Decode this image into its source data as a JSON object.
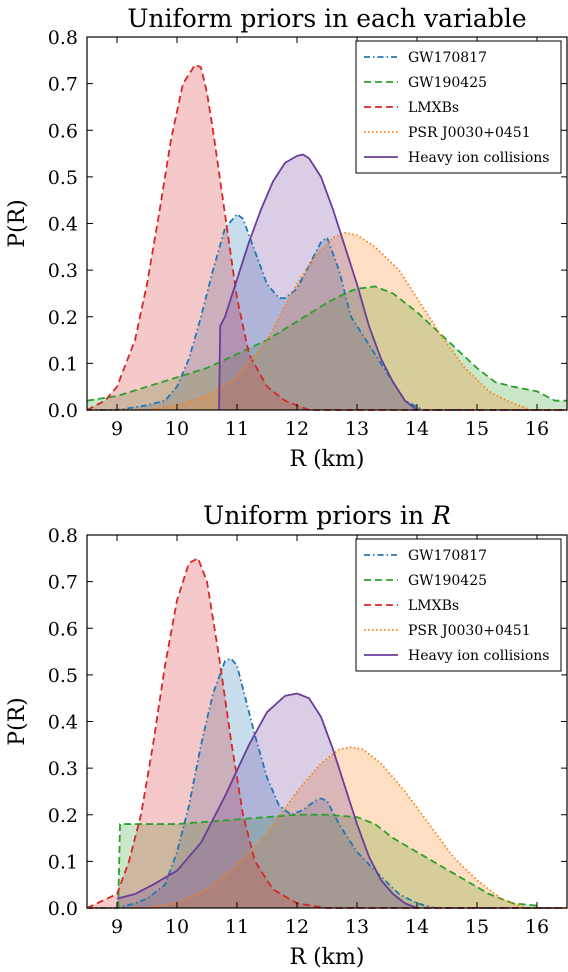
{
  "chart_data": [
    {
      "type": "area",
      "title": "Uniform priors in each variable",
      "xlabel": "R (km)",
      "ylabel": "P(R)",
      "xlim": [
        8.5,
        16.5
      ],
      "ylim": [
        0,
        0.8
      ],
      "xticks": [
        "9",
        "10",
        "11",
        "12",
        "13",
        "14",
        "15",
        "16"
      ],
      "yticks": [
        "0.0",
        "0.1",
        "0.2",
        "0.3",
        "0.4",
        "0.5",
        "0.6",
        "0.7",
        "0.8"
      ],
      "legend": "top-right",
      "series": [
        {
          "name": "GW170817",
          "color": "#1f77b4",
          "style": "dashdot",
          "x": [
            8.5,
            9.0,
            9.5,
            9.8,
            10.0,
            10.2,
            10.4,
            10.6,
            10.8,
            11.0,
            11.1,
            11.3,
            11.5,
            11.7,
            11.8,
            12.0,
            12.2,
            12.4,
            12.5,
            12.7,
            12.9,
            13.2,
            13.5,
            13.8,
            14.1,
            14.5,
            16.5
          ],
          "y": [
            0.0,
            0.0,
            0.01,
            0.02,
            0.05,
            0.11,
            0.2,
            0.3,
            0.39,
            0.42,
            0.41,
            0.34,
            0.27,
            0.24,
            0.24,
            0.26,
            0.31,
            0.36,
            0.37,
            0.3,
            0.2,
            0.14,
            0.08,
            0.02,
            0.0,
            0.0,
            0.0
          ]
        },
        {
          "name": "GW190425",
          "color": "#2ca02c",
          "style": "dashed",
          "x": [
            8.5,
            9.0,
            9.5,
            10.0,
            10.5,
            11.0,
            11.5,
            12.0,
            12.5,
            12.8,
            13.0,
            13.3,
            13.6,
            14.0,
            14.5,
            15.0,
            15.3,
            15.6,
            16.0,
            16.3,
            16.5
          ],
          "y": [
            0.02,
            0.03,
            0.05,
            0.07,
            0.09,
            0.12,
            0.15,
            0.19,
            0.23,
            0.25,
            0.26,
            0.265,
            0.25,
            0.21,
            0.15,
            0.09,
            0.06,
            0.05,
            0.04,
            0.02,
            0.02
          ]
        },
        {
          "name": "LMXBs",
          "color": "#d62728",
          "style": "dashed",
          "x": [
            8.5,
            8.8,
            9.0,
            9.3,
            9.5,
            9.7,
            9.9,
            10.1,
            10.3,
            10.4,
            10.5,
            10.6,
            10.8,
            11.0,
            11.2,
            11.5,
            11.8,
            12.2,
            12.5,
            16.5
          ],
          "y": [
            0.0,
            0.02,
            0.05,
            0.15,
            0.27,
            0.42,
            0.58,
            0.7,
            0.74,
            0.735,
            0.68,
            0.6,
            0.42,
            0.24,
            0.12,
            0.05,
            0.02,
            0.0,
            0.0,
            0.0
          ]
        },
        {
          "name": "PSR J0030+0451",
          "color": "#ff7f0e",
          "style": "dotted",
          "x": [
            8.5,
            9.0,
            9.5,
            10.0,
            10.5,
            11.0,
            11.5,
            12.0,
            12.3,
            12.6,
            12.8,
            13.0,
            13.3,
            13.7,
            14.0,
            14.4,
            14.8,
            15.2,
            15.5,
            15.9,
            16.5
          ],
          "y": [
            0.0,
            0.0,
            0.0,
            0.01,
            0.03,
            0.07,
            0.15,
            0.27,
            0.33,
            0.37,
            0.38,
            0.375,
            0.35,
            0.3,
            0.24,
            0.16,
            0.09,
            0.04,
            0.02,
            0.0,
            0.0
          ]
        },
        {
          "name": "Heavy ion collisions",
          "color": "#6a3d9a",
          "style": "solid",
          "x": [
            10.7,
            10.72,
            10.8,
            11.0,
            11.2,
            11.4,
            11.6,
            11.8,
            12.0,
            12.1,
            12.2,
            12.4,
            12.6,
            12.8,
            13.0,
            13.2,
            13.4,
            13.6,
            13.8,
            14.0
          ],
          "y": [
            0.0,
            0.18,
            0.2,
            0.28,
            0.36,
            0.43,
            0.49,
            0.53,
            0.545,
            0.548,
            0.54,
            0.5,
            0.43,
            0.35,
            0.27,
            0.18,
            0.11,
            0.06,
            0.02,
            0.0
          ]
        }
      ]
    },
    {
      "type": "area",
      "title": "Uniform priors in ",
      "title_var": "R",
      "xlabel": "R (km)",
      "ylabel": "P(R)",
      "xlim": [
        8.5,
        16.5
      ],
      "ylim": [
        0,
        0.8
      ],
      "xticks": [
        "9",
        "10",
        "11",
        "12",
        "13",
        "14",
        "15",
        "16"
      ],
      "yticks": [
        "0.0",
        "0.1",
        "0.2",
        "0.3",
        "0.4",
        "0.5",
        "0.6",
        "0.7",
        "0.8"
      ],
      "legend": "top-right",
      "series": [
        {
          "name": "GW170817",
          "color": "#1f77b4",
          "style": "dashdot",
          "x": [
            8.5,
            9.0,
            9.3,
            9.5,
            9.8,
            10.0,
            10.2,
            10.4,
            10.6,
            10.8,
            10.9,
            11.0,
            11.1,
            11.3,
            11.5,
            11.7,
            11.9,
            12.1,
            12.3,
            12.4,
            12.5,
            12.7,
            13.0,
            13.3,
            13.7,
            14.0,
            14.3,
            16.5
          ],
          "y": [
            0.0,
            0.0,
            0.01,
            0.02,
            0.05,
            0.12,
            0.22,
            0.35,
            0.46,
            0.53,
            0.535,
            0.52,
            0.47,
            0.37,
            0.28,
            0.22,
            0.2,
            0.21,
            0.23,
            0.235,
            0.23,
            0.18,
            0.12,
            0.08,
            0.03,
            0.01,
            0.0,
            0.0
          ]
        },
        {
          "name": "GW190425",
          "color": "#2ca02c",
          "style": "dashed",
          "x": [
            9.02,
            9.05,
            9.5,
            10.0,
            11.0,
            12.0,
            12.5,
            13.0,
            13.3,
            13.6,
            14.0,
            14.4,
            14.8,
            15.2,
            15.6,
            16.0,
            16.02
          ],
          "y": [
            0.0,
            0.18,
            0.18,
            0.18,
            0.19,
            0.2,
            0.2,
            0.195,
            0.18,
            0.15,
            0.12,
            0.09,
            0.06,
            0.03,
            0.01,
            0.005,
            0.0
          ]
        },
        {
          "name": "LMXBs",
          "color": "#d62728",
          "style": "dashed",
          "x": [
            8.5,
            9.0,
            9.2,
            9.4,
            9.6,
            9.8,
            10.0,
            10.2,
            10.35,
            10.5,
            10.7,
            10.9,
            11.1,
            11.3,
            11.6,
            12.0,
            12.5,
            16.5
          ],
          "y": [
            0.0,
            0.03,
            0.1,
            0.2,
            0.35,
            0.52,
            0.66,
            0.74,
            0.75,
            0.7,
            0.54,
            0.36,
            0.2,
            0.1,
            0.04,
            0.01,
            0.0,
            0.0
          ]
        },
        {
          "name": "PSR J0030+0451",
          "color": "#ff7f0e",
          "style": "dotted",
          "x": [
            8.5,
            9.0,
            9.5,
            10.0,
            10.5,
            11.0,
            11.5,
            12.0,
            12.4,
            12.7,
            12.9,
            13.1,
            13.4,
            13.8,
            14.2,
            14.6,
            15.0,
            15.4,
            15.8,
            16.5
          ],
          "y": [
            0.0,
            0.0,
            0.0,
            0.01,
            0.04,
            0.09,
            0.16,
            0.25,
            0.31,
            0.34,
            0.345,
            0.34,
            0.31,
            0.25,
            0.18,
            0.11,
            0.06,
            0.02,
            0.0,
            0.0
          ]
        },
        {
          "name": "Heavy ion collisions",
          "color": "#6a3d9a",
          "style": "solid",
          "x": [
            9.0,
            9.3,
            9.6,
            10.0,
            10.4,
            10.8,
            11.2,
            11.5,
            11.8,
            12.0,
            12.2,
            12.4,
            12.6,
            12.8,
            13.0,
            13.2,
            13.4,
            13.6,
            13.8,
            14.0
          ],
          "y": [
            0.02,
            0.03,
            0.05,
            0.08,
            0.14,
            0.24,
            0.35,
            0.42,
            0.455,
            0.46,
            0.45,
            0.41,
            0.34,
            0.26,
            0.18,
            0.11,
            0.06,
            0.03,
            0.01,
            0.0
          ]
        }
      ]
    }
  ]
}
